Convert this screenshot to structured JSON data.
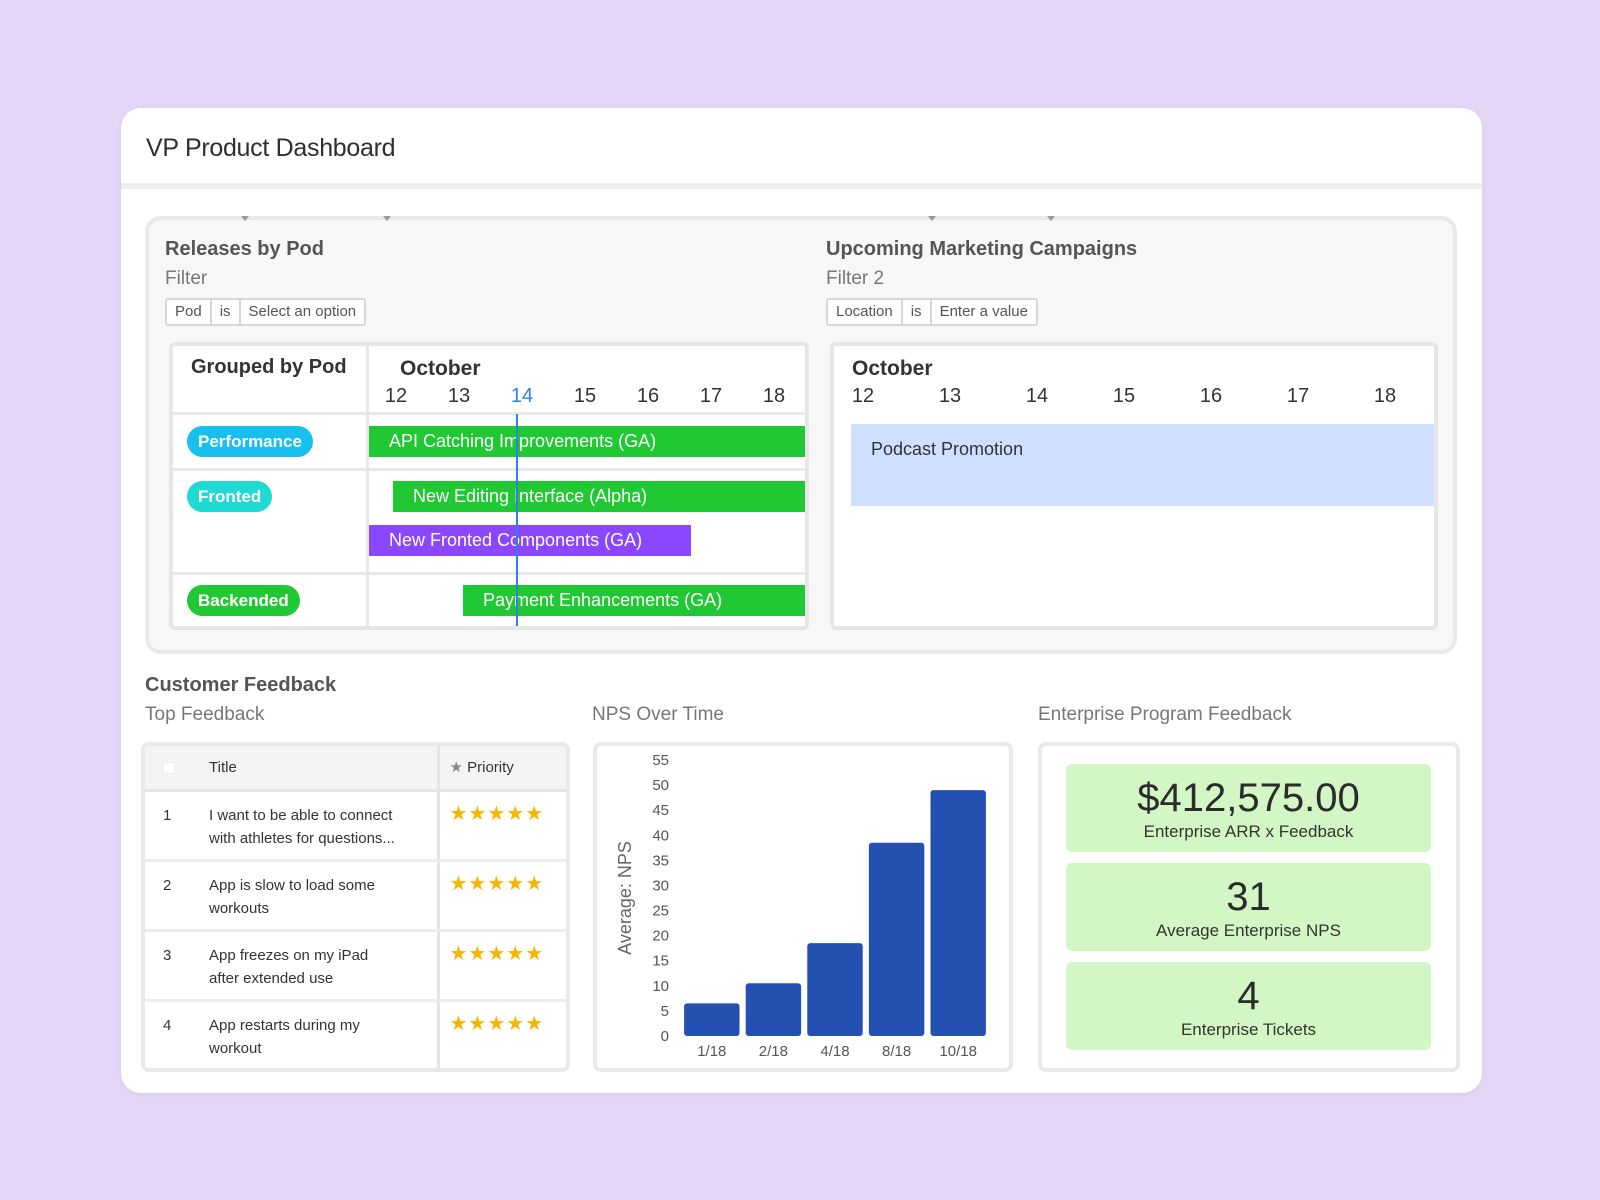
{
  "dashboard": {
    "title": "VP Product Dashboard"
  },
  "releases": {
    "title": "Releases by Pod",
    "filter_label": "Filter",
    "filter": {
      "field": "Pod",
      "op": "is",
      "value": "Select an option"
    },
    "group_header": "Grouped by Pod",
    "month": "October",
    "days": [
      "12",
      "13",
      "14",
      "15",
      "16",
      "17",
      "18"
    ],
    "today": "14",
    "pods": [
      {
        "label": "Performance",
        "color": "#18bfef"
      },
      {
        "label": "Fronted",
        "color": "#20d9d2"
      },
      {
        "label": "Backended",
        "color": "#20c933"
      }
    ],
    "bars": [
      {
        "label": "API Catching Improvements (GA)",
        "color": "#20c933"
      },
      {
        "label": "New Editing Interface (Alpha)",
        "color": "#20c933"
      },
      {
        "label": "New Fronted Components (GA)",
        "color": "#8b46ff"
      },
      {
        "label": "Payment Enhancements (GA)",
        "color": "#20c933"
      }
    ]
  },
  "marketing": {
    "title": "Upcoming Marketing Campaigns",
    "filter_label": "Filter 2",
    "filter": {
      "field": "Location",
      "op": "is",
      "value": "Enter a value"
    },
    "month": "October",
    "days": [
      "12",
      "13",
      "14",
      "15",
      "16",
      "17",
      "18"
    ],
    "campaign": {
      "label": "Podcast Promotion",
      "color": "#cfdfff"
    }
  },
  "feedback": {
    "section_title": "Customer Feedback",
    "top": {
      "title": "Top Feedback",
      "columns": {
        "title": "Title",
        "priority": "Priority"
      },
      "rows": [
        {
          "num": "1",
          "line1": "I want to be able to connect",
          "line2": "with athletes for questions...",
          "stars": "★★★★★"
        },
        {
          "num": "2",
          "line1": "App is slow to load some",
          "line2": "workouts",
          "stars": "★★★★★"
        },
        {
          "num": "3",
          "line1": "App freezes on my iPad",
          "line2": "after extended use",
          "stars": "★★★★★"
        },
        {
          "num": "4",
          "line1": "App restarts during my",
          "line2": "workout",
          "stars": "★★★★★"
        }
      ]
    },
    "nps": {
      "title": "NPS Over Time"
    },
    "enterprise": {
      "title": "Enterprise Program Feedback",
      "metrics": [
        {
          "value": "$412,575.00",
          "label": "Enterprise ARR x Feedback"
        },
        {
          "value": "31",
          "label": "Average Enterprise NPS"
        },
        {
          "value": "4",
          "label": "Enterprise Tickets"
        }
      ]
    }
  },
  "chart_data": {
    "type": "bar",
    "categories": [
      "1/18",
      "2/18",
      "4/18",
      "8/18",
      "10/18"
    ],
    "values": [
      6.5,
      10.5,
      18.5,
      38.5,
      49
    ],
    "ylabel": "Average: NPS",
    "xlabel": "",
    "ylim": [
      0,
      55
    ],
    "yticks": [
      "0",
      "5",
      "10",
      "15",
      "20",
      "25",
      "30",
      "35",
      "40",
      "45",
      "50",
      "55"
    ],
    "bar_color": "#2450b2",
    "grid": false
  }
}
